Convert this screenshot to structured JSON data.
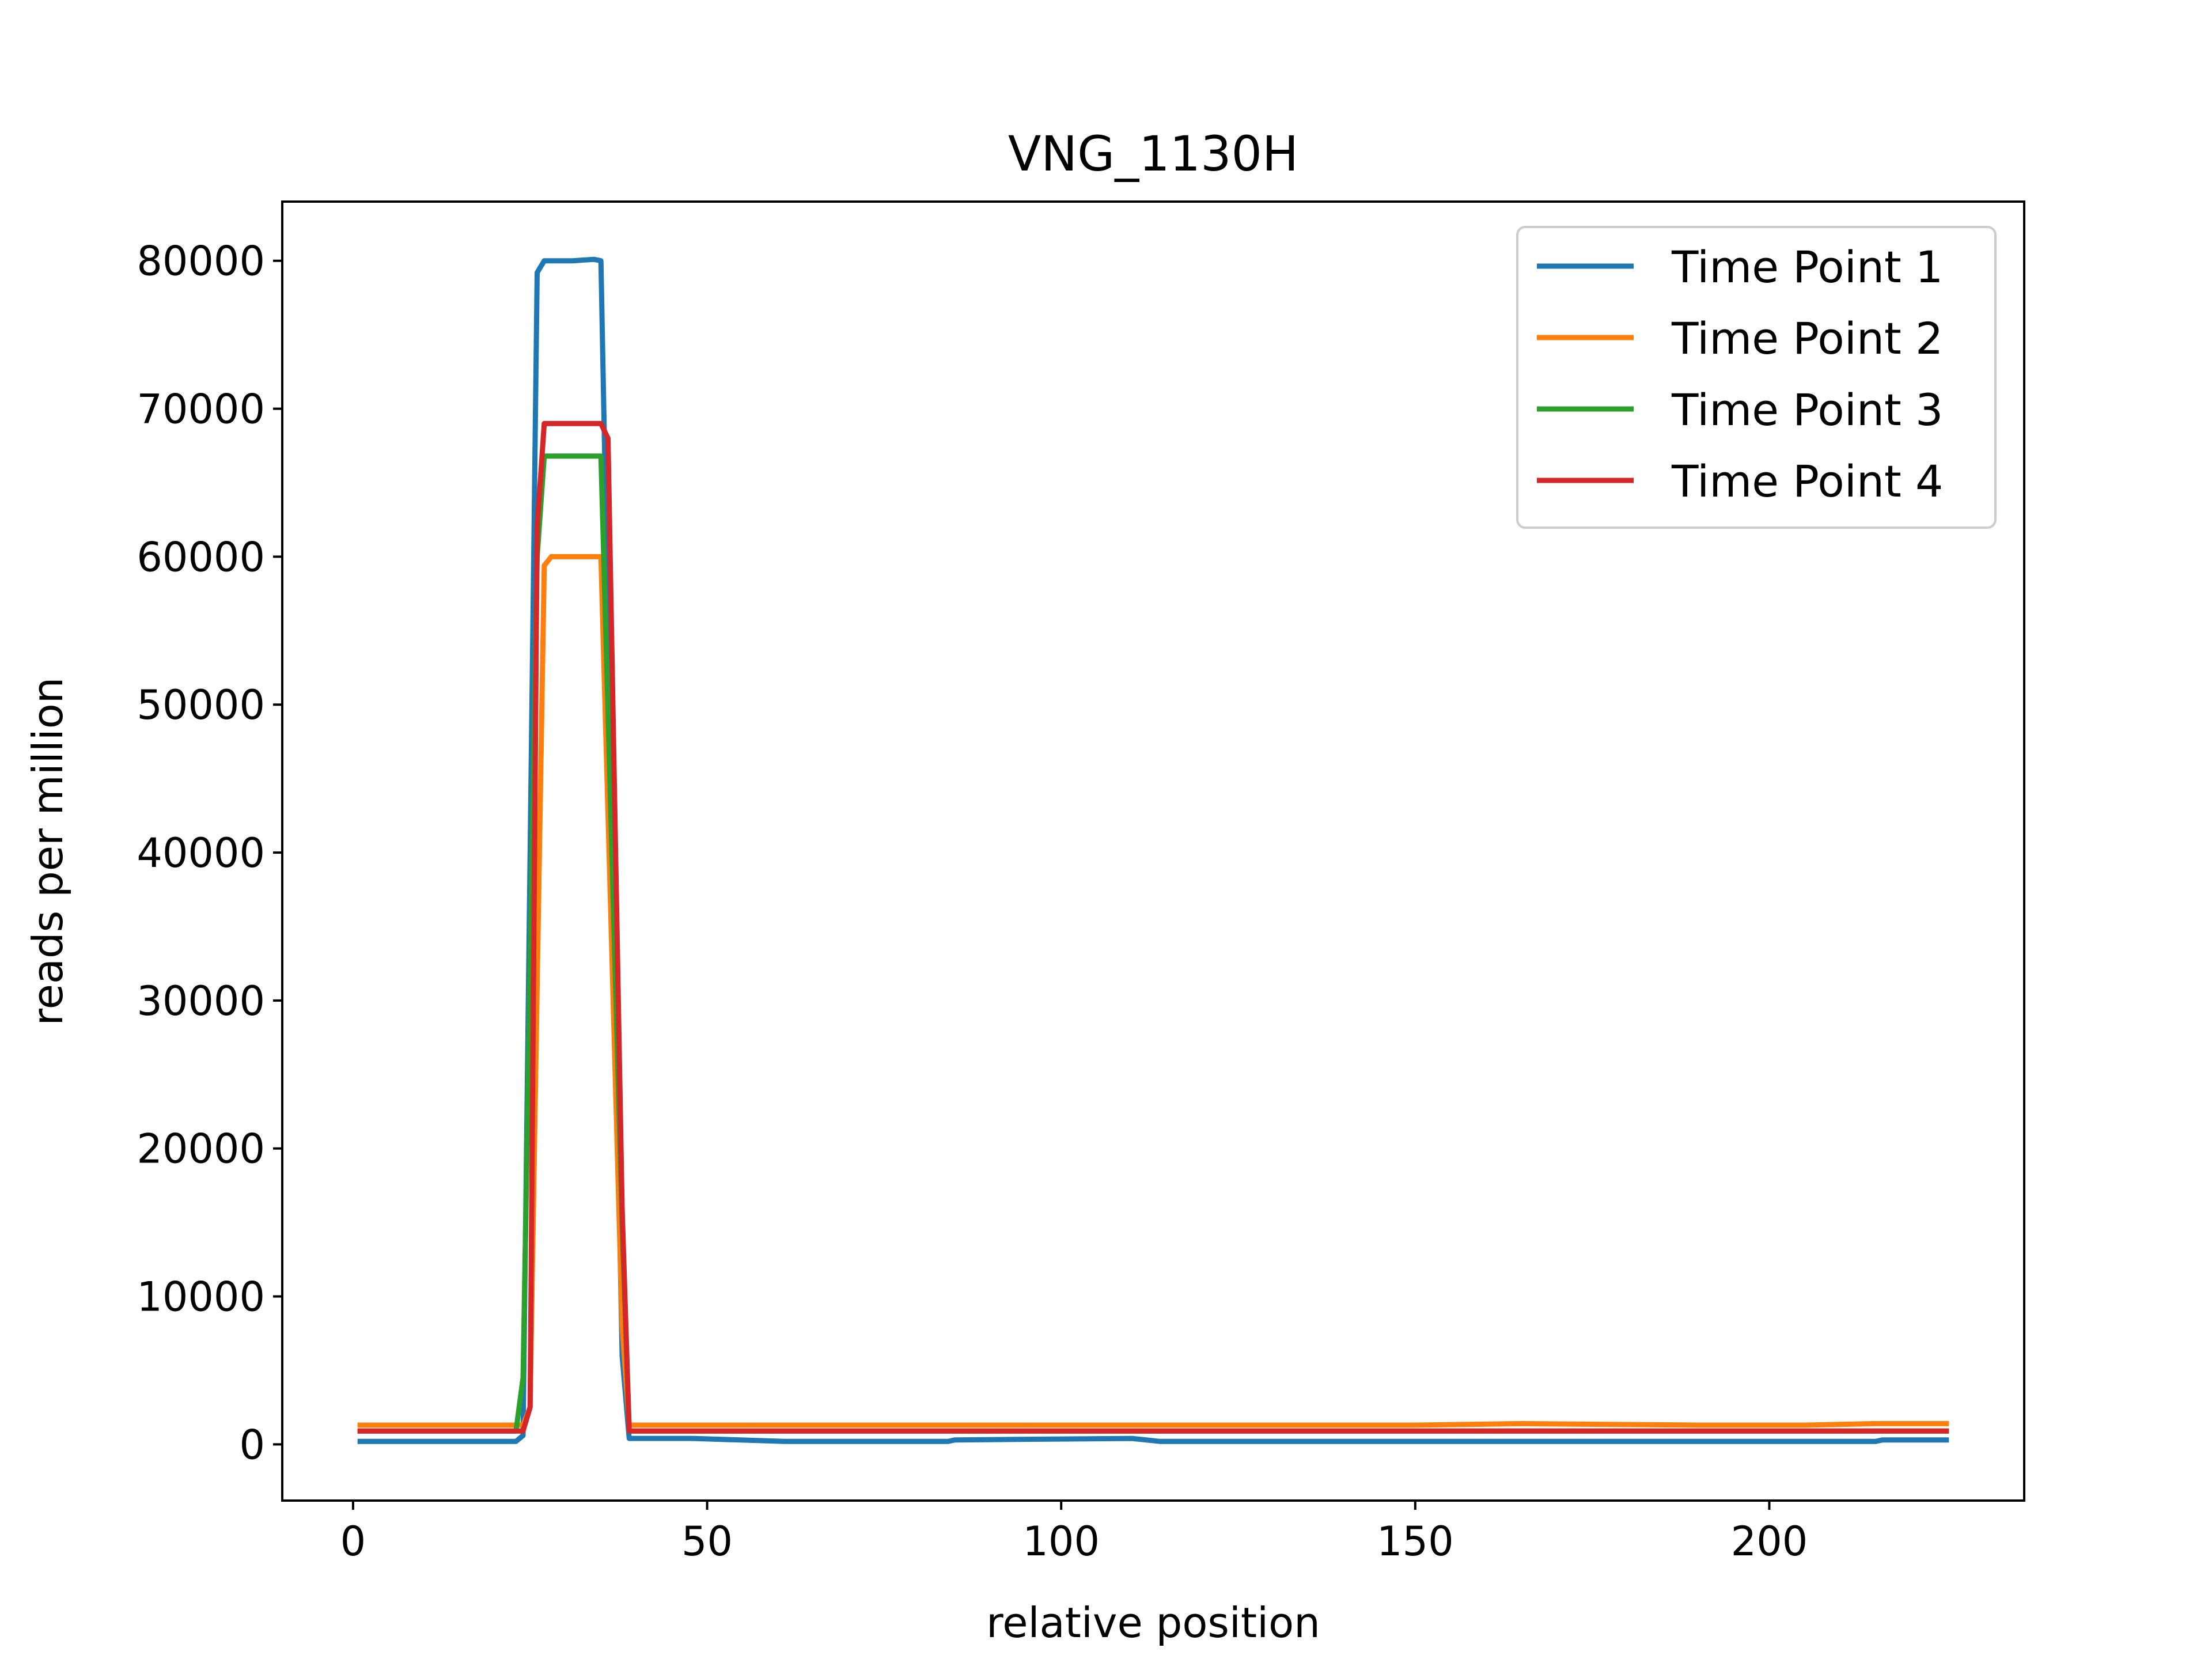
{
  "chart_data": {
    "type": "line",
    "title": "VNG_1130H",
    "xlabel": "relative position",
    "ylabel": "reads per million",
    "xlim": [
      -10,
      236
    ],
    "ylim": [
      -3800,
      84000
    ],
    "x_ticks": [
      0,
      50,
      100,
      150,
      200
    ],
    "y_ticks": [
      0,
      10000,
      20000,
      30000,
      40000,
      50000,
      60000,
      70000,
      80000
    ],
    "grid": false,
    "legend_position": "top-right",
    "series": [
      {
        "name": "Time Point 1",
        "color": "#1f77b4",
        "points": [
          [
            1,
            200
          ],
          [
            23,
            200
          ],
          [
            24,
            600
          ],
          [
            26,
            79200
          ],
          [
            27,
            80000
          ],
          [
            31,
            80000
          ],
          [
            34,
            80100
          ],
          [
            35,
            80000
          ],
          [
            38,
            6000
          ],
          [
            39,
            400
          ],
          [
            48,
            400
          ],
          [
            61,
            200
          ],
          [
            84,
            200
          ],
          [
            85,
            300
          ],
          [
            110,
            400
          ],
          [
            114,
            200
          ],
          [
            215,
            200
          ],
          [
            216,
            300
          ],
          [
            225,
            300
          ]
        ]
      },
      {
        "name": "Time Point 2",
        "color": "#ff7f0e",
        "points": [
          [
            1,
            1300
          ],
          [
            24,
            1300
          ],
          [
            25,
            2500
          ],
          [
            27,
            59400
          ],
          [
            28,
            60000
          ],
          [
            35,
            60000
          ],
          [
            38,
            8000
          ],
          [
            39,
            1300
          ],
          [
            150,
            1300
          ],
          [
            165,
            1400
          ],
          [
            190,
            1300
          ],
          [
            205,
            1300
          ],
          [
            215,
            1400
          ],
          [
            225,
            1400
          ]
        ]
      },
      {
        "name": "Time Point 3",
        "color": "#2ca02c",
        "points": [
          [
            1,
            900
          ],
          [
            23,
            900
          ],
          [
            24,
            4500
          ],
          [
            26,
            60000
          ],
          [
            27,
            66800
          ],
          [
            35,
            66800
          ],
          [
            38,
            15000
          ],
          [
            39,
            900
          ],
          [
            225,
            900
          ]
        ]
      },
      {
        "name": "Time Point 4",
        "color": "#d62728",
        "points": [
          [
            1,
            900
          ],
          [
            24,
            900
          ],
          [
            25,
            2500
          ],
          [
            26,
            62000
          ],
          [
            27,
            69000
          ],
          [
            35,
            69000
          ],
          [
            36,
            68000
          ],
          [
            38,
            16000
          ],
          [
            39,
            900
          ],
          [
            225,
            900
          ]
        ]
      }
    ]
  }
}
